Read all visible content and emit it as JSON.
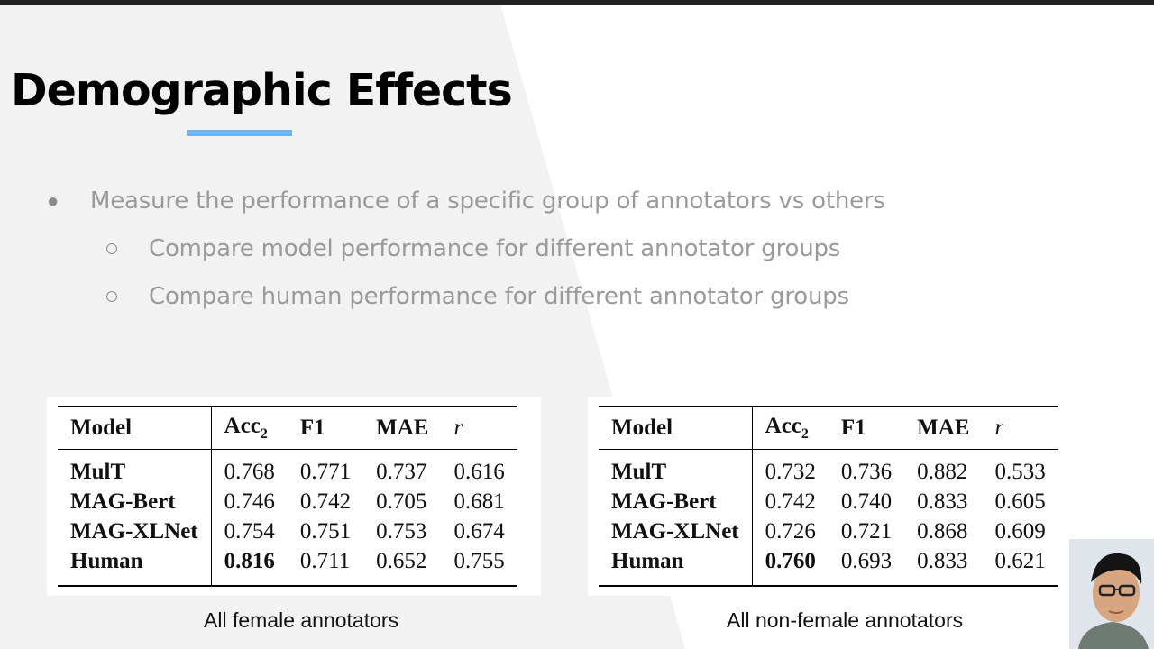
{
  "slide": {
    "title": "Demographic Effects",
    "accent_color": "#74b3ea",
    "bullets": [
      {
        "text": "Measure the performance of a specific group of annotators vs others",
        "children": [
          "Compare model performance for different annotator groups",
          "Compare human performance for different annotator groups"
        ]
      }
    ]
  },
  "tables": [
    {
      "caption": "All female annotators",
      "headers": [
        "Model",
        "Acc",
        "2",
        "F1",
        "MAE",
        "r"
      ],
      "rows": [
        {
          "model": "MulT",
          "acc2": "0.768",
          "f1": "0.771",
          "mae": "0.737",
          "r": "0.616"
        },
        {
          "model": "MAG-Bert",
          "acc2": "0.746",
          "f1": "0.742",
          "mae": "0.705",
          "r": "0.681"
        },
        {
          "model": "MAG-XLNet",
          "acc2": "0.754",
          "f1": "0.751",
          "mae": "0.753",
          "r": "0.674"
        },
        {
          "model": "Human",
          "acc2": "0.816",
          "f1": "0.711",
          "mae": "0.652",
          "r": "0.755"
        }
      ]
    },
    {
      "caption": "All non-female annotators",
      "headers": [
        "Model",
        "Acc",
        "2",
        "F1",
        "MAE",
        "r"
      ],
      "rows": [
        {
          "model": "MulT",
          "acc2": "0.732",
          "f1": "0.736",
          "mae": "0.882",
          "r": "0.533"
        },
        {
          "model": "MAG-Bert",
          "acc2": "0.742",
          "f1": "0.740",
          "mae": "0.833",
          "r": "0.605"
        },
        {
          "model": "MAG-XLNet",
          "acc2": "0.726",
          "f1": "0.721",
          "mae": "0.868",
          "r": "0.609"
        },
        {
          "model": "Human",
          "acc2": "0.760",
          "f1": "0.693",
          "mae": "0.833",
          "r": "0.621"
        }
      ]
    }
  ],
  "icons": {
    "bullet": "filled-circle-bullet",
    "sub_bullet": "hollow-circle-bullet"
  }
}
